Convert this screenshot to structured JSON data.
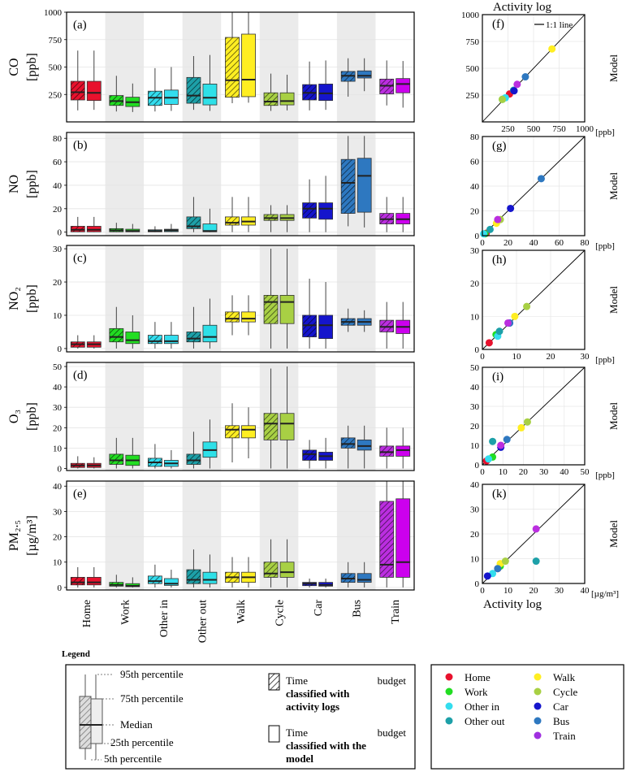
{
  "chart_data": {
    "type": "box",
    "categories": [
      "Home",
      "Work",
      "Other in",
      "Other out",
      "Walk",
      "Cycle",
      "Car",
      "Bus",
      "Train"
    ],
    "category_colors": [
      "#E8112D",
      "#22DD22",
      "#33DDEE",
      "#1DA0A8",
      "#FFEE22",
      "#A8D044",
      "#1515CC",
      "#2E78C0",
      "#BB2EE0"
    ],
    "model_fill_colors": [
      "#E8112D",
      "#22DD22",
      "#33DDEE",
      "#2EE0E8",
      "#FFEE22",
      "#A8D044",
      "#1515CC",
      "#2E78C0",
      "#CC00EE"
    ],
    "shaded_categories": [
      "Work",
      "Other out",
      "Cycle",
      "Bus"
    ],
    "series_names": [
      "Time budget classified with activity logs",
      "Time budget classified with the model"
    ],
    "panels": [
      {
        "letter": "(a)",
        "ylabel_top": "CO",
        "ylabel_bottom": "[ppb]",
        "ylim": [
          0,
          1000
        ],
        "yticks": [
          250,
          500,
          750,
          1000
        ],
        "boxes": [
          [
            [
              105,
              200,
              270,
              370,
              650
            ],
            [
              110,
              195,
              265,
              370,
              650
            ]
          ],
          [
            [
              95,
              150,
              190,
              240,
              420
            ],
            [
              90,
              140,
              180,
              225,
              350
            ]
          ],
          [
            [
              95,
              150,
              220,
              280,
              490
            ],
            [
              100,
              160,
              220,
              290,
              500
            ]
          ],
          [
            [
              110,
              170,
              240,
              405,
              600
            ],
            [
              100,
              155,
              220,
              345,
              610
            ]
          ],
          [
            [
              170,
              225,
              380,
              770,
              1000
            ],
            [
              175,
              230,
              385,
              800,
              1000
            ]
          ],
          [
            [
              100,
              150,
              185,
              265,
              440
            ],
            [
              105,
              155,
              190,
              265,
              430
            ]
          ],
          [
            [
              105,
              200,
              265,
              340,
              550
            ],
            [
              110,
              195,
              260,
              345,
              560
            ]
          ],
          [
            [
              230,
              370,
              420,
              460,
              580
            ],
            [
              280,
              400,
              420,
              465,
              580
            ]
          ],
          [
            [
              150,
              255,
              330,
              390,
              560
            ],
            [
              130,
              265,
              345,
              395,
              555
            ]
          ]
        ],
        "scatter": [
          [
            265,
            260
          ],
          [
            195,
            210
          ],
          [
            225,
            225
          ],
          [
            305,
            295
          ],
          [
            680,
            680
          ],
          [
            195,
            210
          ],
          [
            310,
            290
          ],
          [
            420,
            420
          ],
          [
            340,
            350
          ]
        ],
        "scatter_lim": [
          0,
          1000
        ],
        "scatter_ticks": [
          250,
          500,
          750,
          1000
        ],
        "scatter_letter": "(f)",
        "unit_label": "[ppb]",
        "line_label": "1:1 line"
      },
      {
        "letter": "(b)",
        "ylabel_top": "NO",
        "ylabel_bottom": "[ppb]",
        "ylim": [
          -3,
          85
        ],
        "yticks": [
          0,
          20,
          40,
          60,
          80
        ],
        "boxes": [
          [
            [
              0,
              0.3,
              2,
              5,
              13
            ],
            [
              0,
              0.3,
              2,
              5,
              13
            ]
          ],
          [
            [
              0,
              0.3,
              1.5,
              3,
              8
            ],
            [
              0,
              0.3,
              1,
              2.5,
              7
            ]
          ],
          [
            [
              0,
              0.3,
              1,
              2,
              5
            ],
            [
              0,
              0.4,
              1.5,
              2.5,
              7
            ]
          ],
          [
            [
              0,
              3,
              5,
              13,
              30
            ],
            [
              0,
              0.3,
              1,
              7,
              20
            ]
          ],
          [
            [
              0,
              6,
              8,
              13,
              30
            ],
            [
              0,
              6,
              9,
              13,
              30
            ]
          ],
          [
            [
              0,
              10,
              12,
              15,
              23
            ],
            [
              0,
              10,
              12,
              15,
              23
            ]
          ],
          [
            [
              0,
              12,
              20,
              25,
              45
            ],
            [
              0,
              11,
              20,
              25,
              48
            ]
          ],
          [
            [
              5,
              16,
              42,
              62,
              82
            ],
            [
              4,
              17,
              48,
              63,
              82
            ]
          ],
          [
            [
              0,
              7,
              11,
              16,
              30
            ],
            [
              0,
              7,
              11,
              16,
              30
            ]
          ]
        ],
        "scatter": [
          [
            3,
            2
          ],
          [
            2,
            1.5
          ],
          [
            1,
            1.5
          ],
          [
            6,
            5
          ],
          [
            11,
            10
          ],
          [
            14,
            13
          ],
          [
            22,
            22
          ],
          [
            46,
            46
          ],
          [
            12,
            13
          ]
        ],
        "scatter_lim": [
          0,
          80
        ],
        "scatter_ticks": [
          0,
          20,
          40,
          60,
          80
        ],
        "scatter_letter": "(g)",
        "unit_label": "[ppb]"
      },
      {
        "letter": "(c)",
        "ylabel_top": "NO₂",
        "ylabel_bottom": "[ppb]",
        "ylim": [
          -1,
          31
        ],
        "yticks": [
          0,
          10,
          20,
          30
        ],
        "boxes": [
          [
            [
              0,
              0.4,
              1.3,
              2,
              4
            ],
            [
              0,
              0.4,
              1.3,
              2,
              4
            ]
          ],
          [
            [
              0,
              2,
              3.5,
              6,
              12.5
            ],
            [
              0,
              1.5,
              2.5,
              5,
              10
            ]
          ],
          [
            [
              0,
              1.5,
              2.2,
              4,
              8
            ],
            [
              0,
              1.5,
              2.2,
              4,
              8
            ]
          ],
          [
            [
              0,
              2,
              3,
              5,
              12.5
            ],
            [
              0,
              2,
              3.5,
              7,
              15
            ]
          ],
          [
            [
              4,
              8,
              9,
              11,
              16
            ],
            [
              4,
              8,
              9,
              11,
              16
            ]
          ],
          [
            [
              0,
              7.5,
              14,
              16,
              30
            ],
            [
              0,
              7.5,
              14,
              16,
              30
            ]
          ],
          [
            [
              0,
              3.5,
              7,
              10,
              21
            ],
            [
              0,
              3,
              7,
              10,
              20
            ]
          ],
          [
            [
              5,
              7,
              8,
              9,
              12
            ],
            [
              5,
              7,
              8,
              9,
              11.5
            ]
          ],
          [
            [
              0,
              5,
              6.5,
              8.5,
              14
            ],
            [
              0,
              4.5,
              6.5,
              8.5,
              14
            ]
          ]
        ],
        "scatter": [
          [
            2,
            2
          ],
          [
            4,
            4.5
          ],
          [
            4.5,
            4
          ],
          [
            5,
            5.5
          ],
          [
            9.5,
            10
          ],
          [
            13,
            13
          ],
          [
            8,
            8
          ],
          [
            8,
            8
          ],
          [
            7.5,
            8
          ]
        ],
        "scatter_lim": [
          0,
          30
        ],
        "scatter_ticks": [
          0,
          10,
          20,
          30
        ],
        "scatter_letter": "(h)",
        "unit_label": "[ppb]"
      },
      {
        "letter": "(d)",
        "ylabel_top": "O₃",
        "ylabel_bottom": "[ppb]",
        "ylim": [
          -1,
          52
        ],
        "yticks": [
          0,
          10,
          20,
          30,
          40,
          50
        ],
        "boxes": [
          [
            [
              0,
              0.5,
              1.5,
              2.5,
              6
            ],
            [
              0,
              0.5,
              1.5,
              2.5,
              5.5
            ]
          ],
          [
            [
              0,
              2,
              4,
              7,
              15
            ],
            [
              0,
              1.5,
              4,
              6.5,
              15
            ]
          ],
          [
            [
              0,
              1,
              3,
              5,
              12
            ],
            [
              0,
              1,
              2.5,
              4,
              9
            ]
          ],
          [
            [
              0,
              2,
              4,
              7,
              18
            ],
            [
              0,
              5.5,
              9,
              13,
              24
            ]
          ],
          [
            [
              3,
              15,
              19,
              21,
              32
            ],
            [
              5,
              15,
              19,
              21,
              30
            ]
          ],
          [
            [
              0,
              14,
              22,
              27,
              49
            ],
            [
              0,
              14,
              22,
              27,
              50
            ]
          ],
          [
            [
              0,
              4,
              7,
              9,
              14
            ],
            [
              0,
              4,
              6,
              8,
              15
            ]
          ],
          [
            [
              0,
              10,
              12,
              15,
              21
            ],
            [
              0,
              9,
              11,
              14,
              21
            ]
          ],
          [
            [
              0,
              6,
              8,
              11,
              20
            ],
            [
              0,
              6,
              9,
              11,
              20
            ]
          ]
        ],
        "scatter": [
          [
            2,
            2
          ],
          [
            5,
            4
          ],
          [
            3,
            3
          ],
          [
            5,
            12
          ],
          [
            19,
            19
          ],
          [
            22,
            22
          ],
          [
            9,
            9
          ],
          [
            12,
            13
          ],
          [
            9,
            10
          ]
        ],
        "scatter_lim": [
          0,
          50
        ],
        "scatter_ticks": [
          0,
          10,
          20,
          30,
          40,
          50
        ],
        "scatter_letter": "(i)",
        "unit_label": "[ppb]"
      },
      {
        "letter": "(e)",
        "ylabel_top": "PM₂.₅",
        "ylabel_bottom": "[µg/m³]",
        "ylim": [
          -1,
          42
        ],
        "yticks": [
          0,
          10,
          20,
          30,
          40
        ],
        "boxes": [
          [
            [
              0,
              1,
              2,
              4,
              8
            ],
            [
              0,
              1,
              2,
              4,
              8
            ]
          ],
          [
            [
              0,
              0.5,
              1,
              2,
              5
            ],
            [
              0,
              0.3,
              0.6,
              1.5,
              4
            ]
          ],
          [
            [
              0,
              1.5,
              2.5,
              4.5,
              9
            ],
            [
              0,
              0.8,
              1.5,
              3.5,
              7
            ]
          ],
          [
            [
              0,
              1.5,
              3,
              7,
              15
            ],
            [
              0,
              1.5,
              3,
              6,
              13
            ]
          ],
          [
            [
              0,
              2,
              4,
              6,
              12
            ],
            [
              0,
              2,
              4,
              6,
              12
            ]
          ],
          [
            [
              0,
              4,
              5.5,
              10,
              19
            ],
            [
              0,
              4,
              6,
              10,
              19
            ]
          ],
          [
            [
              0,
              0.7,
              1.5,
              2,
              3.5
            ],
            [
              0,
              0.5,
              1,
              2,
              3.5
            ]
          ],
          [
            [
              0,
              2,
              3.5,
              5.5,
              10
            ],
            [
              0,
              2,
              3,
              5.5,
              10
            ]
          ],
          [
            [
              0,
              4,
              9,
              34,
              42
            ],
            [
              0,
              4,
              10,
              35,
              42
            ]
          ]
        ],
        "scatter": [
          [
            6,
            6
          ],
          [
            7,
            7
          ],
          [
            4,
            4
          ],
          [
            21,
            9
          ],
          [
            7,
            8
          ],
          [
            9,
            9
          ],
          [
            2,
            3
          ],
          [
            6,
            6
          ],
          [
            21,
            22
          ]
        ],
        "scatter_lim": [
          0,
          40
        ],
        "scatter_ticks": [
          0,
          10,
          20,
          30,
          40
        ],
        "scatter_letter": "(k)",
        "unit_label": "[µg/m³]"
      }
    ],
    "scatter_top_title": "Activity log",
    "scatter_bottom_xlabel": "Activity log",
    "scatter_ylabel": "Model"
  },
  "legend": {
    "title": "Legend",
    "percentile_95": "95th percentile",
    "percentile_75": "75th percentile",
    "median": "Median",
    "percentile_25": "25th percentile",
    "percentile_5": "5th percentile",
    "time_budget_1_a": "Time",
    "time_budget_1_b": "budget",
    "time_budget_1_c": "classified with",
    "time_budget_1_d": "activity logs",
    "time_budget_2_a": "Time",
    "time_budget_2_b": "budget",
    "time_budget_2_c": "classified with the",
    "time_budget_2_d": "model"
  },
  "color_legend": [
    {
      "label": "Home",
      "color": "#E8112D"
    },
    {
      "label": "Work",
      "color": "#22DD22"
    },
    {
      "label": "Other in",
      "color": "#33DDEE"
    },
    {
      "label": "Other out",
      "color": "#1DA0A8"
    },
    {
      "label": "Walk",
      "color": "#FFEE22"
    },
    {
      "label": "Cycle",
      "color": "#A8D044"
    },
    {
      "label": "Car",
      "color": "#1515CC"
    },
    {
      "label": "Bus",
      "color": "#2E78C0"
    },
    {
      "label": "Train",
      "color": "#A030E0"
    }
  ]
}
